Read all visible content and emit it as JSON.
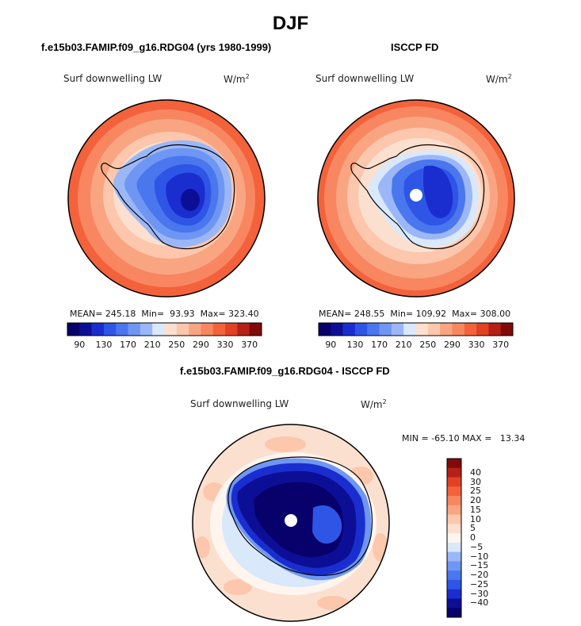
{
  "page": {
    "title": "DJF"
  },
  "colors": {
    "hbar_palette": [
      "#08006b",
      "#0c0f96",
      "#1a2ecf",
      "#2f55e6",
      "#4a76ee",
      "#6f96f3",
      "#9bb7f7",
      "#d9e8fb",
      "#fce0cf",
      "#fcc7ad",
      "#f9a582",
      "#f88661",
      "#f3623b",
      "#e14224",
      "#b52117",
      "#800a0a"
    ],
    "vbar_palette": [
      "#800a0a",
      "#b52117",
      "#e14224",
      "#f3623b",
      "#f88661",
      "#f9a582",
      "#fcc7ad",
      "#fce0cf",
      "#fff5ef",
      "#d9e8fb",
      "#9bb7f7",
      "#6f96f3",
      "#4a76ee",
      "#2f55e6",
      "#1a2ecf",
      "#0c0f96",
      "#08006b"
    ],
    "land_outline": "#000000"
  },
  "chart_data": [
    {
      "type": "heatmap",
      "panel_title": "f.e15b03.FAMIP.f09_g16.RDG04 (yrs 1980-1999)",
      "variable": "Surf downwelling LW",
      "units": "W/m",
      "units_exp": "2",
      "projection": "south polar stereographic",
      "stats": {
        "mean": "245.18",
        "min": "93.93",
        "max": "323.40",
        "mean_label": "MEAN=",
        "min_label": "Min=",
        "max_label": "Max="
      },
      "colorbar": {
        "orientation": "horizontal",
        "tick_labels": [
          "90",
          "130",
          "170",
          "210",
          "250",
          "290",
          "330",
          "370"
        ]
      }
    },
    {
      "type": "heatmap",
      "panel_title": "ISCCP FD",
      "variable": "Surf downwelling LW",
      "units": "W/m",
      "units_exp": "2",
      "projection": "south polar stereographic",
      "stats": {
        "mean": "248.55",
        "min": "109.92",
        "max": "308.00",
        "mean_label": "MEAN=",
        "min_label": "Min=",
        "max_label": "Max="
      },
      "colorbar": {
        "orientation": "horizontal",
        "tick_labels": [
          "90",
          "130",
          "170",
          "210",
          "250",
          "290",
          "330",
          "370"
        ]
      }
    },
    {
      "type": "heatmap",
      "panel_title": "f.e15b03.FAMIP.f09_g16.RDG04 - ISCCP FD",
      "variable": "Surf downwelling LW",
      "units": "W/m",
      "units_exp": "2",
      "projection": "south polar stereographic",
      "stats": {
        "min_label": "MIN =",
        "min": "-65.10",
        "max_label": "MAX =",
        "max": "13.34"
      },
      "colorbar": {
        "orientation": "vertical",
        "tick_labels": [
          "40",
          "30",
          "25",
          "20",
          "15",
          "10",
          "5",
          "0",
          "−5",
          "−10",
          "−15",
          "−20",
          "−25",
          "−30",
          "−40"
        ]
      }
    }
  ]
}
